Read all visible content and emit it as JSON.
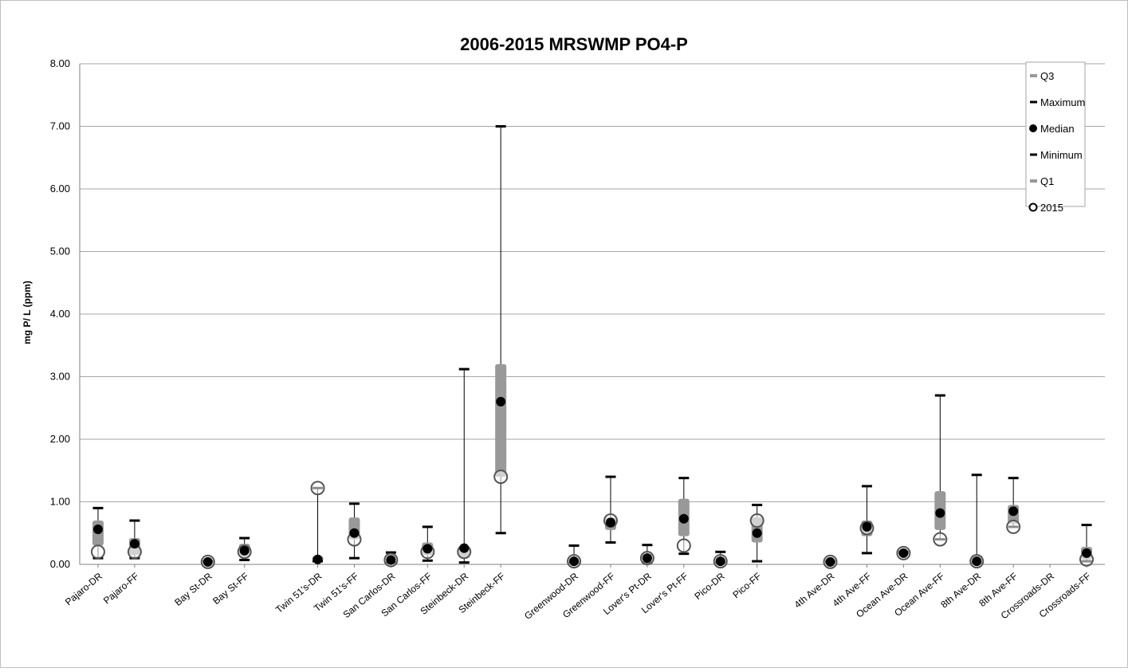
{
  "chart_data": {
    "type": "box",
    "title": "2006-2015 MRSWMP PO4-P",
    "xlabel": "",
    "ylabel": "mg P/ L  (ppm)",
    "ylim": [
      0,
      8
    ],
    "yticks": [
      "0.00",
      "1.00",
      "2.00",
      "3.00",
      "4.00",
      "5.00",
      "6.00",
      "7.00",
      "8.00"
    ],
    "grid": true,
    "legend_position": "top-right",
    "legend": [
      "Q3",
      "Maximum",
      "Median",
      "Minimum",
      "Q1",
      "2015"
    ],
    "colors": {
      "box": "#999999",
      "whisker": "#000000",
      "median": "#000000",
      "marker2015_fill": "#ffffff",
      "grid": "#a6a6a6"
    },
    "groups": [
      [
        "Pajaro-DR",
        "Pajaro-FF"
      ],
      [
        "Bay St-DR",
        "Bay St-FF"
      ],
      [
        "Twin 51's-DR",
        "Twin 51's-FF",
        "San Carlos-DR",
        "San Carlos-FF",
        "Steinbeck-DR",
        "Steinbeck-FF"
      ],
      [
        "Greenwood-DR",
        "Greenwood-FF",
        "Lover's Pt-DR",
        "Lover's Pt-FF",
        "Pico-DR",
        "Pico-FF"
      ],
      [
        "4th Ave-DR",
        "4th Ave-FF",
        "Ocean Ave-DR",
        "Ocean Ave-FF",
        "8th Ave-DR",
        "8th Ave-FF",
        "Crossroads-DR",
        "Crossroads-FF"
      ]
    ],
    "series": [
      {
        "name": "Q3",
        "values": [
          0.7,
          0.42,
          0.05,
          0.33,
          0.13,
          0.75,
          0.17,
          0.35,
          0.3,
          3.2,
          0.1,
          0.75,
          0.17,
          1.05,
          0.1,
          0.75,
          0.05,
          0.7,
          0.2,
          1.17,
          0.15,
          0.95,
          null,
          0.28
        ]
      },
      {
        "name": "Maximum",
        "values": [
          0.9,
          0.7,
          0.05,
          0.42,
          1.22,
          0.97,
          0.19,
          0.6,
          3.12,
          7.0,
          0.3,
          1.4,
          0.31,
          1.38,
          0.2,
          0.95,
          0.05,
          1.25,
          0.2,
          2.7,
          1.43,
          1.38,
          null,
          0.63
        ]
      },
      {
        "name": "Median",
        "values": [
          0.56,
          0.33,
          0.04,
          0.22,
          0.08,
          0.5,
          0.07,
          0.25,
          0.26,
          2.6,
          0.05,
          0.67,
          0.1,
          0.73,
          0.05,
          0.5,
          0.04,
          0.6,
          0.18,
          0.82,
          0.05,
          0.85,
          null,
          0.18
        ]
      },
      {
        "name": "Minimum",
        "values": [
          0.1,
          0.1,
          0.04,
          0.07,
          0.05,
          0.1,
          0.03,
          0.06,
          0.03,
          0.5,
          0.03,
          0.35,
          0.03,
          0.17,
          0.03,
          0.05,
          0.04,
          0.18,
          0.18,
          0.4,
          0.03,
          0.6,
          null,
          0.05
        ]
      },
      {
        "name": "Q1",
        "values": [
          0.3,
          0.15,
          0.04,
          0.12,
          0.05,
          0.4,
          0.04,
          0.15,
          0.1,
          1.4,
          0.03,
          0.55,
          0.05,
          0.45,
          0.03,
          0.35,
          0.04,
          0.45,
          0.18,
          0.55,
          0.03,
          0.65,
          null,
          0.08
        ]
      },
      {
        "name": "2015",
        "values": [
          0.2,
          0.2,
          0.04,
          0.2,
          1.22,
          0.4,
          0.07,
          0.2,
          0.2,
          1.4,
          0.05,
          0.7,
          0.1,
          0.3,
          0.05,
          0.7,
          0.04,
          0.58,
          0.18,
          0.4,
          0.05,
          0.6,
          null,
          0.08
        ]
      }
    ]
  }
}
